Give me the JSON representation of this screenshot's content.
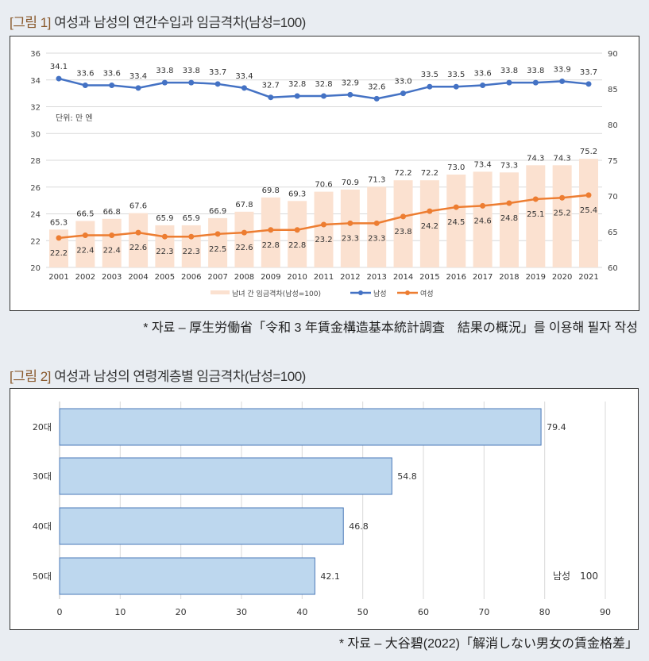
{
  "figure1": {
    "label": "[그림 1]",
    "title": "여성과 남성의 연간수입과 임금격차(남성=100)",
    "source": "* 자료 – 厚生労働省「令和 3 年賃金構造基本統計調査　結果の概況」를 이용해 필자 작성"
  },
  "figure2": {
    "label": "[그림 2]",
    "title": "여성과 남성의 연령계층별 임금격차(남성=100)",
    "source": "* 자료 – 大谷碧(2022)「解消しない男女の賃金格差」"
  },
  "chart_data": [
    {
      "type": "bar+line",
      "unit_note": "단위: 만 엔",
      "categories": [
        "2001",
        "2002",
        "2003",
        "2004",
        "2005",
        "2006",
        "2007",
        "2008",
        "2009",
        "2010",
        "2011",
        "2012",
        "2013",
        "2014",
        "2015",
        "2016",
        "2017",
        "2018",
        "2019",
        "2020",
        "2021"
      ],
      "y_left": {
        "range": [
          20,
          36
        ],
        "ticks": [
          20,
          22,
          24,
          26,
          28,
          30,
          32,
          34,
          36
        ]
      },
      "y_right": {
        "range": [
          60,
          90
        ],
        "ticks": [
          60,
          65,
          70,
          75,
          80,
          85,
          90
        ]
      },
      "grid": true,
      "legend_position": "bottom",
      "series": [
        {
          "name": "남녀 간 임금격차(남성=100)",
          "type": "bar",
          "axis": "right",
          "color": "#fbe1d0",
          "values": [
            65.3,
            66.5,
            66.8,
            67.6,
            65.9,
            65.9,
            66.9,
            67.8,
            69.8,
            69.3,
            70.6,
            70.9,
            71.3,
            72.2,
            72.2,
            73.0,
            73.4,
            73.3,
            74.3,
            74.3,
            75.2
          ]
        },
        {
          "name": "남성",
          "type": "line",
          "axis": "left",
          "color": "#4472c4",
          "values": [
            34.1,
            33.6,
            33.6,
            33.4,
            33.8,
            33.8,
            33.7,
            33.4,
            32.7,
            32.8,
            32.8,
            32.9,
            32.6,
            33.0,
            33.5,
            33.5,
            33.6,
            33.8,
            33.8,
            33.9,
            33.7
          ]
        },
        {
          "name": "여성",
          "type": "line",
          "axis": "left",
          "color": "#ed7d31",
          "values": [
            22.2,
            22.4,
            22.4,
            22.6,
            22.3,
            22.3,
            22.5,
            22.6,
            22.8,
            22.8,
            23.2,
            23.3,
            23.3,
            23.8,
            24.2,
            24.5,
            24.6,
            24.8,
            25.1,
            25.2,
            25.4
          ]
        }
      ]
    },
    {
      "type": "bar",
      "orientation": "horizontal",
      "categories": [
        "20대",
        "30대",
        "40대",
        "50대"
      ],
      "values": [
        79.4,
        54.8,
        46.8,
        42.1
      ],
      "color": "#bdd7ee",
      "xlim": [
        0,
        90
      ],
      "x_ticks": [
        0,
        10,
        20,
        30,
        40,
        50,
        60,
        70,
        80,
        90
      ],
      "grid": true,
      "annotation": "남성　100"
    }
  ]
}
